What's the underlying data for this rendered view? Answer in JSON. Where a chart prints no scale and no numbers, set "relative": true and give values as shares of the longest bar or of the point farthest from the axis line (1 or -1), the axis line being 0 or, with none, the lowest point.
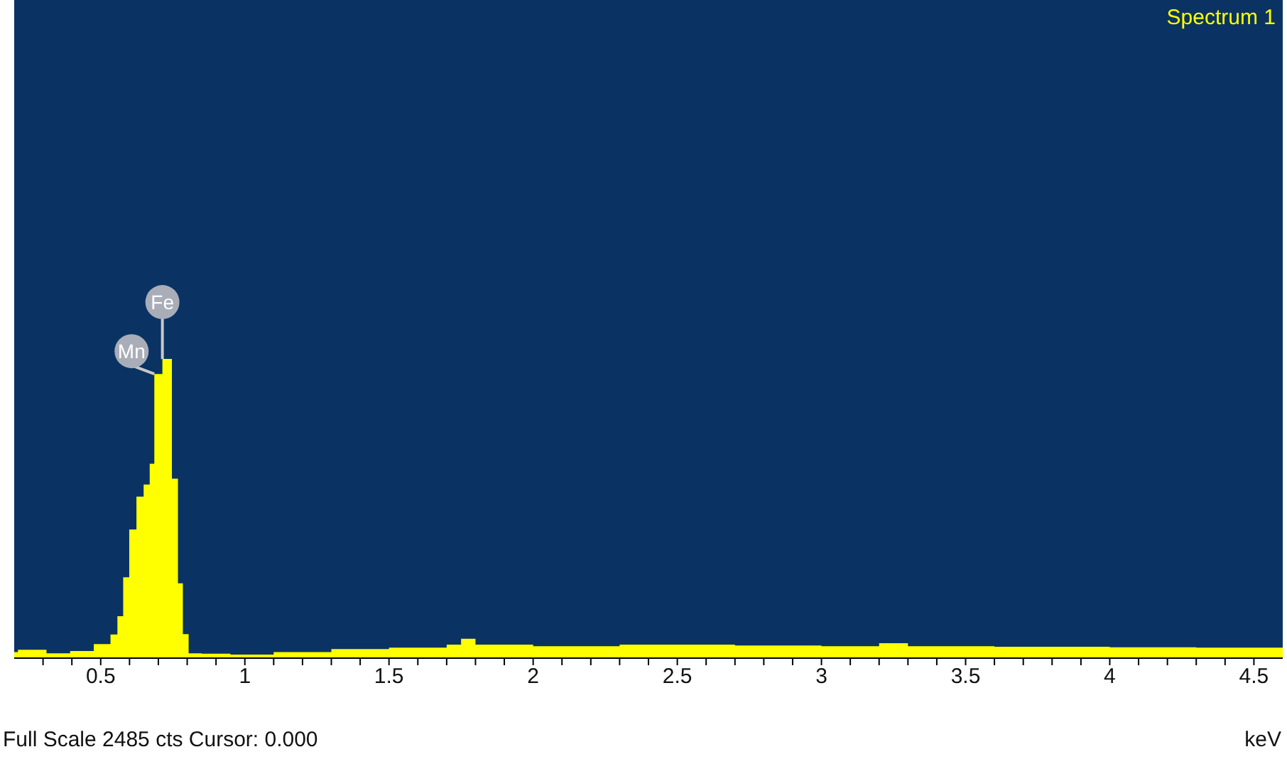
{
  "chart_data": {
    "type": "area",
    "title": "Spectrum 1",
    "xlabel": "keV",
    "relative": true,
    "color": "#ffff00",
    "legend": false,
    "grid": false,
    "x": [
      0.2,
      0.213,
      0.312,
      0.394,
      0.476,
      0.534,
      0.558,
      0.578,
      0.599,
      0.624,
      0.649,
      0.67,
      0.686,
      0.714,
      0.747,
      0.768,
      0.785,
      0.805,
      0.85,
      0.95,
      1.1,
      1.3,
      1.5,
      1.7,
      1.75,
      1.8,
      2.0,
      2.3,
      2.5,
      2.7,
      3.0,
      3.2,
      3.3,
      3.6,
      4.0,
      4.3,
      4.6
    ],
    "values": [
      0.02,
      0.028,
      0.016,
      0.024,
      0.047,
      0.079,
      0.14,
      0.27,
      0.43,
      0.54,
      0.58,
      0.65,
      0.95,
      1.0,
      0.6,
      0.25,
      0.08,
      0.016,
      0.015,
      0.012,
      0.02,
      0.03,
      0.035,
      0.045,
      0.065,
      0.045,
      0.04,
      0.045,
      0.045,
      0.042,
      0.04,
      0.05,
      0.04,
      0.038,
      0.036,
      0.035,
      0.035
    ],
    "xlim": [
      0.2,
      4.6
    ],
    "xticks": [
      {
        "value": 0.3,
        "label": null
      },
      {
        "value": 0.4,
        "label": null
      },
      {
        "value": 0.5,
        "label": "0.5"
      },
      {
        "value": 0.6,
        "label": null
      },
      {
        "value": 0.7,
        "label": null
      },
      {
        "value": 0.8,
        "label": null
      },
      {
        "value": 0.9,
        "label": null
      },
      1,
      {
        "value": 1.1,
        "label": null
      },
      {
        "value": 1.2,
        "label": null
      },
      {
        "value": 1.3,
        "label": null
      },
      {
        "value": 1.4,
        "label": null
      },
      {
        "value": 1.5,
        "label": "1.5"
      },
      {
        "value": 1.6,
        "label": null
      },
      {
        "value": 1.7,
        "label": null
      },
      {
        "value": 1.8,
        "label": null
      },
      {
        "value": 1.9,
        "label": null
      },
      2,
      {
        "value": 2.1,
        "label": null
      },
      {
        "value": 2.2,
        "label": null
      },
      {
        "value": 2.3,
        "label": null
      },
      {
        "value": 2.4,
        "label": null
      },
      {
        "value": 2.5,
        "label": "2.5"
      },
      {
        "value": 2.6,
        "label": null
      },
      {
        "value": 2.7,
        "label": null
      },
      {
        "value": 2.8,
        "label": null
      },
      {
        "value": 2.9,
        "label": null
      },
      3,
      {
        "value": 3.1,
        "label": null
      },
      {
        "value": 3.2,
        "label": null
      },
      {
        "value": 3.3,
        "label": null
      },
      {
        "value": 3.4,
        "label": null
      },
      {
        "value": 3.5,
        "label": "3.5"
      },
      {
        "value": 3.6,
        "label": null
      },
      {
        "value": 3.7,
        "label": null
      },
      {
        "value": 3.8,
        "label": null
      },
      {
        "value": 3.9,
        "label": null
      },
      4,
      {
        "value": 4.1,
        "label": null
      },
      {
        "value": 4.2,
        "label": null
      },
      {
        "value": 4.3,
        "label": null
      },
      {
        "value": 4.4,
        "label": null
      },
      {
        "value": 4.5,
        "label": "4.5"
      }
    ],
    "annotations": [
      {
        "text": "Fe",
        "x": 0.714,
        "y": 1.0
      },
      {
        "text": "Mn",
        "x": 0.686,
        "y": 0.95
      },
      "Full Scale 2485 cts Cursor: 0.000"
    ]
  }
}
